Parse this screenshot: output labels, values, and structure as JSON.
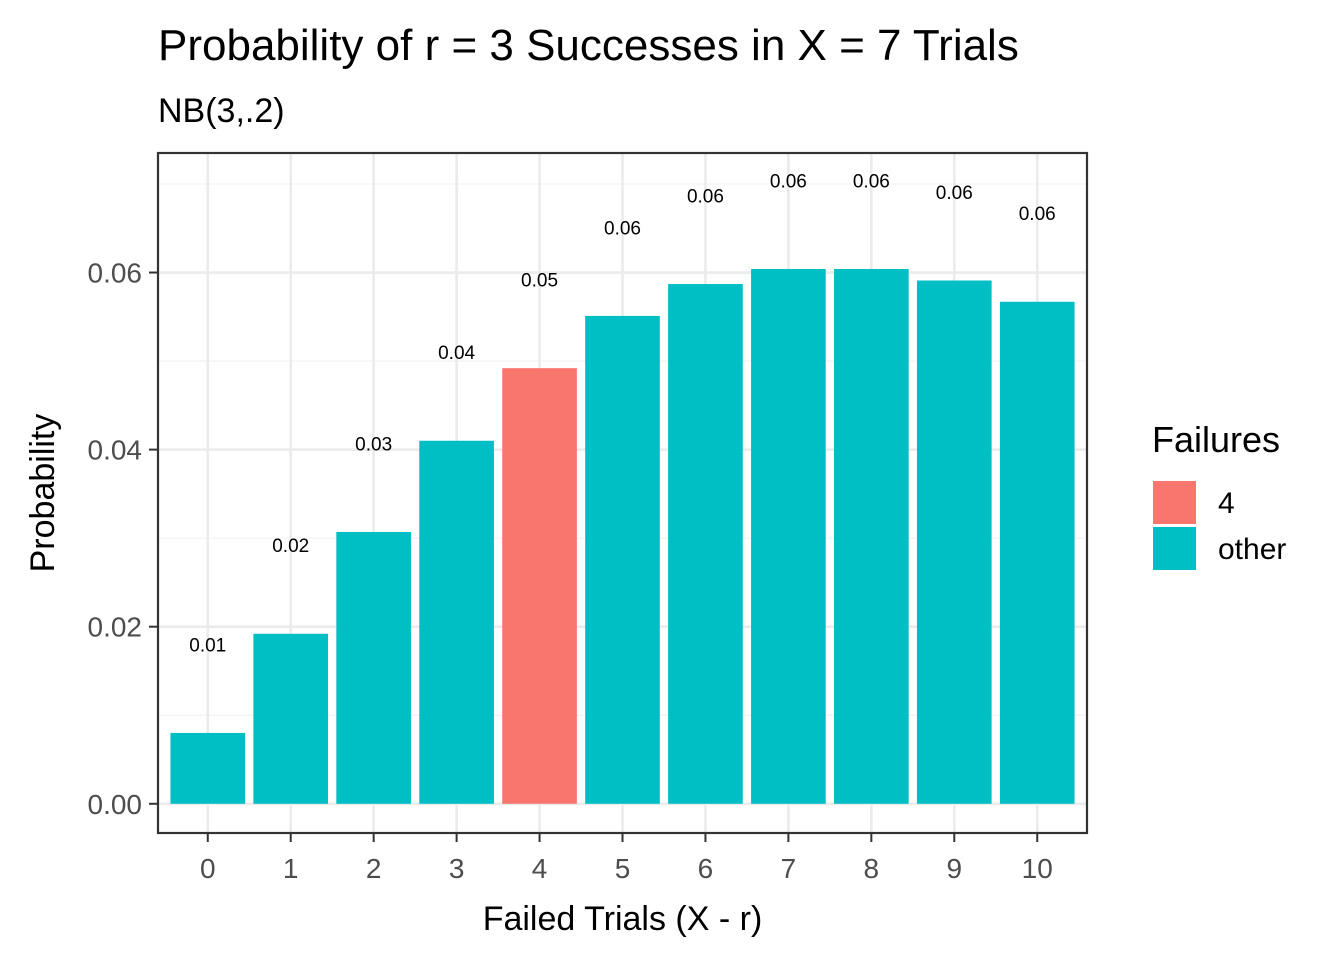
{
  "chart_data": {
    "type": "bar",
    "title": "Probability of r = 3 Successes in X = 7 Trials",
    "subtitle": "NB(3,.2)",
    "xlabel": "Failed Trials (X - r)",
    "ylabel": "Probability",
    "categories": [
      "0",
      "1",
      "2",
      "3",
      "4",
      "5",
      "6",
      "7",
      "8",
      "9",
      "10"
    ],
    "values": [
      0.008,
      0.0192,
      0.0307,
      0.041,
      0.0492,
      0.0551,
      0.0587,
      0.0604,
      0.0604,
      0.0591,
      0.0567
    ],
    "data_labels": [
      "0.01",
      "0.02",
      "0.03",
      "0.04",
      "0.05",
      "0.06",
      "0.06",
      "0.06",
      "0.06",
      "0.06",
      "0.06"
    ],
    "fill_group": [
      "other",
      "other",
      "other",
      "other",
      "4",
      "other",
      "other",
      "other",
      "other",
      "other",
      "other"
    ],
    "ylim": [
      -0.0033,
      0.0735
    ],
    "y_ticks": [
      0.0,
      0.02,
      0.04,
      0.06
    ],
    "y_tick_labels": [
      "0.00",
      "0.02",
      "0.04",
      "0.06"
    ],
    "grid": true,
    "legend": {
      "title": "Failures",
      "position": "right",
      "entries": [
        {
          "label": "4",
          "color": "#F8766D"
        },
        {
          "label": "other",
          "color": "#00BFC4"
        }
      ]
    },
    "colors": {
      "4": "#F8766D",
      "other": "#00BFC4"
    }
  }
}
